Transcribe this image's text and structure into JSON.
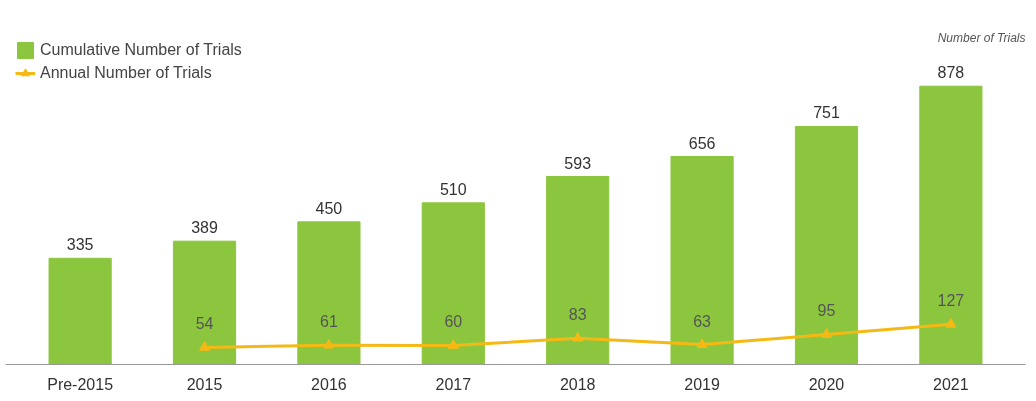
{
  "chart_data": {
    "type": "bar",
    "categories": [
      "Pre-2015",
      "2015",
      "2016",
      "2017",
      "2018",
      "2019",
      "2020",
      "2021"
    ],
    "series": [
      {
        "name": "Cumulative Number of Trials",
        "color": "#8cc63e",
        "values": [
          335,
          389,
          450,
          510,
          593,
          656,
          751,
          878
        ]
      },
      {
        "name": "Annual Number of Trials",
        "type": "line",
        "color": "#f5b915",
        "marker": "triangle",
        "values": [
          null,
          54,
          61,
          60,
          83,
          63,
          95,
          127
        ]
      }
    ],
    "annotations": [
      "Number of Trials"
    ],
    "data_labels": true,
    "legend": "top left",
    "grid": false,
    "tick_labels": "x"
  }
}
